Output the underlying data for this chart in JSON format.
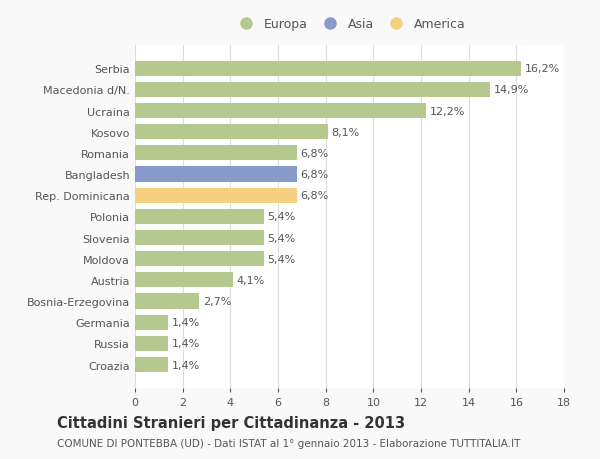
{
  "categories": [
    "Croazia",
    "Russia",
    "Germania",
    "Bosnia-Erzegovina",
    "Austria",
    "Moldova",
    "Slovenia",
    "Polonia",
    "Rep. Dominicana",
    "Bangladesh",
    "Romania",
    "Kosovo",
    "Ucraina",
    "Macedonia d/N.",
    "Serbia"
  ],
  "values": [
    1.4,
    1.4,
    1.4,
    2.7,
    4.1,
    5.4,
    5.4,
    5.4,
    6.8,
    6.8,
    6.8,
    8.1,
    12.2,
    14.9,
    16.2
  ],
  "labels": [
    "1,4%",
    "1,4%",
    "1,4%",
    "2,7%",
    "4,1%",
    "5,4%",
    "5,4%",
    "5,4%",
    "6,8%",
    "6,8%",
    "6,8%",
    "8,1%",
    "12,2%",
    "14,9%",
    "16,2%"
  ],
  "colors": [
    "#b5c98e",
    "#b5c98e",
    "#b5c98e",
    "#b5c98e",
    "#b5c98e",
    "#b5c98e",
    "#b5c98e",
    "#b5c98e",
    "#f5d080",
    "#8899cc",
    "#b5c98e",
    "#b5c98e",
    "#b5c98e",
    "#b5c98e",
    "#b5c98e"
  ],
  "legend_items": [
    {
      "label": "Europa",
      "color": "#b5c98e"
    },
    {
      "label": "Asia",
      "color": "#8899cc"
    },
    {
      "label": "America",
      "color": "#f5d080"
    }
  ],
  "xlim": [
    0,
    18
  ],
  "xticks": [
    0,
    2,
    4,
    6,
    8,
    10,
    12,
    14,
    16,
    18
  ],
  "title": "Cittadini Stranieri per Cittadinanza - 2013",
  "subtitle": "COMUNE DI PONTEBBA (UD) - Dati ISTAT al 1° gennaio 2013 - Elaborazione TUTTITALIA.IT",
  "background_color": "#f9f9f9",
  "plot_bg_color": "#ffffff",
  "grid_color": "#dddddd",
  "text_color": "#555555",
  "label_fontsize": 8.0,
  "tick_fontsize": 8.0,
  "title_fontsize": 10.5,
  "subtitle_fontsize": 7.5,
  "bar_height": 0.72
}
